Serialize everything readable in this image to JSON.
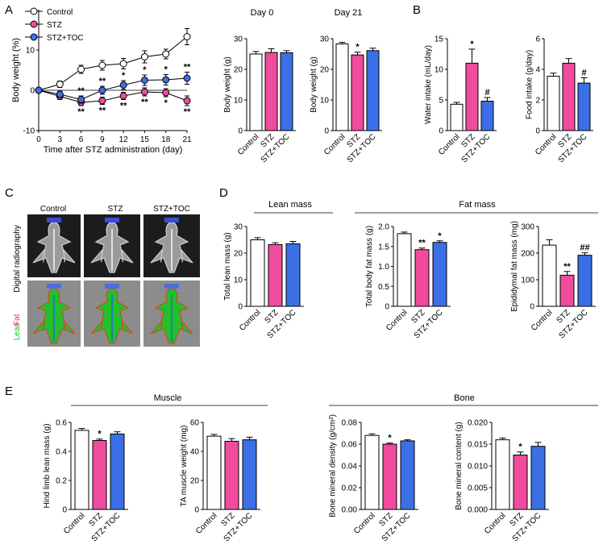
{
  "panel_letters": [
    "A",
    "B",
    "C",
    "D",
    "E"
  ],
  "colors": {
    "control": "#ffffff",
    "stz": "#f04b9c",
    "toc": "#3b6fe6"
  },
  "groups": [
    "Control",
    "STZ",
    "STZ+TOC"
  ],
  "legend": [
    "Control",
    "STZ",
    "STZ+TOC"
  ],
  "headings": {
    "day0": "Day 0",
    "day21": "Day 21",
    "lean_mass": "Lean mass",
    "fat_mass": "Fat mass",
    "muscle": "Muscle",
    "bone": "Bone",
    "c_cols": [
      "Control",
      "STZ",
      "STZ+TOC"
    ],
    "c_row1": "Digital radiography",
    "c_row2_lean": "Lean",
    "c_row2_fat": "Fat"
  },
  "chart_data": [
    {
      "id": "A_line",
      "type": "line",
      "xlabel": "Time after STZ administration (day)",
      "ylabel": "Body weight (%)",
      "x": [
        0,
        3,
        6,
        9,
        12,
        15,
        18,
        21
      ],
      "xlim": [
        0,
        21
      ],
      "ylim": [
        -10,
        20
      ],
      "yticks": [
        -10,
        0,
        10
      ],
      "series": [
        {
          "name": "Control",
          "values": [
            0,
            1.5,
            5.2,
            6.2,
            6.6,
            8.3,
            9.0,
            13.3
          ],
          "err": [
            0.5,
            0.8,
            1.0,
            1.2,
            1.3,
            1.5,
            1.2,
            2.0
          ]
        },
        {
          "name": "STZ",
          "values": [
            0,
            -1.5,
            -3.0,
            -2.6,
            -1.4,
            -0.4,
            -0.6,
            -2.6
          ],
          "err": [
            0.5,
            0.8,
            0.8,
            0.9,
            0.9,
            1.0,
            1.0,
            1.2
          ]
        },
        {
          "name": "STZ+TOC",
          "values": [
            0,
            -1.0,
            -2.3,
            0,
            1.3,
            2.5,
            2.6,
            3.0
          ],
          "err": [
            0.5,
            0.8,
            0.9,
            1.0,
            1.1,
            1.3,
            1.3,
            1.5
          ]
        }
      ],
      "annotations": [
        {
          "x": 6,
          "above": "**",
          "below": "**"
        },
        {
          "x": 9,
          "above": "**",
          "below": "**"
        },
        {
          "x": 12,
          "above": "*",
          "below": "**"
        },
        {
          "x": 15,
          "above": "*",
          "below": "**"
        },
        {
          "x": 18,
          "above": "*",
          "below": "*"
        },
        {
          "x": 21,
          "above": "**",
          "below": "**"
        }
      ]
    },
    {
      "id": "A_day0",
      "type": "bar",
      "ylabel": "Body weight (g)",
      "ylim": [
        0,
        30
      ],
      "yticks": [
        0,
        10,
        20,
        30
      ],
      "categories": [
        "Control",
        "STZ",
        "STZ+TOC"
      ],
      "values": [
        25.0,
        25.5,
        25.4
      ],
      "err": [
        0.8,
        1.2,
        0.7
      ],
      "annotations": [
        "",
        "",
        ""
      ]
    },
    {
      "id": "A_day21",
      "type": "bar",
      "ylabel": "Body weight (g)",
      "ylim": [
        0,
        30
      ],
      "yticks": [
        0,
        10,
        20,
        30
      ],
      "categories": [
        "Control",
        "STZ",
        "STZ+TOC"
      ],
      "values": [
        28.3,
        24.7,
        26.1
      ],
      "err": [
        0.5,
        0.9,
        0.8
      ],
      "annotations": [
        "",
        "*",
        ""
      ]
    },
    {
      "id": "B_water",
      "type": "bar",
      "ylabel": "Water intake (mL/day)",
      "ylim": [
        0,
        15
      ],
      "yticks": [
        0,
        5,
        10,
        15
      ],
      "categories": [
        "Control",
        "STZ",
        "STZ+TOC"
      ],
      "values": [
        4.3,
        11.0,
        4.8
      ],
      "err": [
        0.3,
        2.3,
        0.6
      ],
      "annotations": [
        "",
        "*",
        "#"
      ]
    },
    {
      "id": "B_food",
      "type": "bar",
      "ylabel": "Food intake (g/day)",
      "ylim": [
        0,
        6
      ],
      "yticks": [
        0,
        2,
        4,
        6
      ],
      "categories": [
        "Control",
        "STZ",
        "STZ+TOC"
      ],
      "values": [
        3.55,
        4.4,
        3.1
      ],
      "err": [
        0.2,
        0.3,
        0.35
      ],
      "annotations": [
        "",
        "",
        "#"
      ]
    },
    {
      "id": "D_lean",
      "type": "bar",
      "ylabel": "Total lean mass (g)",
      "ylim": [
        0,
        30
      ],
      "yticks": [
        0,
        10,
        20,
        30
      ],
      "categories": [
        "Control",
        "STZ",
        "STZ+TOC"
      ],
      "values": [
        25.0,
        23.2,
        23.5
      ],
      "err": [
        0.8,
        0.7,
        0.9
      ],
      "annotations": [
        "",
        "",
        ""
      ]
    },
    {
      "id": "D_fat",
      "type": "bar",
      "ylabel": "Total body fat mass (g)",
      "ylim": [
        0,
        2.0
      ],
      "yticks": [
        0,
        0.5,
        1.0,
        1.5,
        2.0
      ],
      "tickLabels": [
        "0",
        "0.5",
        "1.0",
        "1.5",
        "2.0"
      ],
      "categories": [
        "Control",
        "STZ",
        "STZ+TOC"
      ],
      "values": [
        1.82,
        1.42,
        1.6
      ],
      "err": [
        0.04,
        0.04,
        0.04
      ],
      "annotations": [
        "",
        "**",
        "*"
      ]
    },
    {
      "id": "D_epi",
      "type": "bar",
      "ylabel": "Epididymal fat mass (mg)",
      "ylim": [
        0,
        300
      ],
      "yticks": [
        0,
        100,
        200,
        300
      ],
      "categories": [
        "Control",
        "STZ",
        "STZ+TOC"
      ],
      "values": [
        230,
        117,
        192
      ],
      "err": [
        20,
        14,
        9
      ],
      "annotations": [
        "",
        "**",
        "##"
      ]
    },
    {
      "id": "E_hind",
      "type": "bar",
      "ylabel": "Hind limb lean mass (g)",
      "ylim": [
        0,
        0.6
      ],
      "yticks": [
        0,
        0.2,
        0.4,
        0.6
      ],
      "tickLabels": [
        "0",
        "0.2",
        "0.4",
        "0.6"
      ],
      "categories": [
        "Control",
        "STZ",
        "STZ+TOC"
      ],
      "values": [
        0.545,
        0.475,
        0.52
      ],
      "err": [
        0.013,
        0.01,
        0.015
      ],
      "annotations": [
        "",
        "*",
        ""
      ]
    },
    {
      "id": "E_ta",
      "type": "bar",
      "ylabel": "TA muscle weight (mg)",
      "ylim": [
        0,
        60
      ],
      "yticks": [
        0,
        20,
        40,
        60
      ],
      "categories": [
        "Control",
        "STZ",
        "STZ+TOC"
      ],
      "values": [
        50.5,
        47.0,
        48.0
      ],
      "err": [
        1.2,
        1.8,
        1.8
      ],
      "annotations": [
        "",
        "",
        ""
      ]
    },
    {
      "id": "E_bmd",
      "type": "bar",
      "ylabel": "Bone mineral density (g/cm²)",
      "ylim": [
        0,
        0.08
      ],
      "yticks": [
        0,
        0.02,
        0.04,
        0.06,
        0.08
      ],
      "tickLabels": [
        "0.00",
        "0.02",
        "0.04",
        "0.06",
        "0.08"
      ],
      "categories": [
        "Control",
        "STZ",
        "STZ+TOC"
      ],
      "values": [
        0.068,
        0.06,
        0.063
      ],
      "err": [
        0.0015,
        0.001,
        0.001
      ],
      "annotations": [
        "",
        "*",
        ""
      ]
    },
    {
      "id": "E_bmc",
      "type": "bar",
      "ylabel": "Bone mineral content (g)",
      "ylim": [
        0,
        0.02
      ],
      "yticks": [
        0,
        0.005,
        0.01,
        0.015,
        0.02
      ],
      "tickLabels": [
        "0.000",
        "0.005",
        "0.010",
        "0.015",
        "0.020"
      ],
      "categories": [
        "Control",
        "STZ",
        "STZ+TOC"
      ],
      "values": [
        0.016,
        0.0125,
        0.0145
      ],
      "err": [
        0.0004,
        0.0007,
        0.0009
      ],
      "annotations": [
        "",
        "*",
        ""
      ]
    }
  ]
}
